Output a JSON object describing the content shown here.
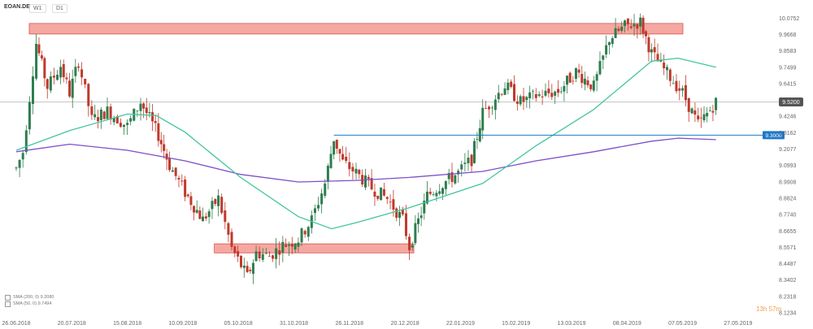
{
  "toolbar": {
    "symbol": "EOAN.DE",
    "timeframe": "W1",
    "interval": "D1"
  },
  "countdown": "13h 57m",
  "legend": {
    "sma200": "SMA (200, 0) 9.2080",
    "sma50": "SMA (50, 0) 9.7494"
  },
  "price_labels": {
    "last": "9.5200",
    "level": "9.3000"
  },
  "colors": {
    "up": "#2e7d4f",
    "down": "#c0392b",
    "sma50": "#43c59e",
    "sma200": "#7b4fc9",
    "zone_fill": "#f28b82",
    "zone_stroke": "#d9534f",
    "level_line": "#1f78c8",
    "last_price_bg": "#555555"
  },
  "chart_data": {
    "type": "candlestick",
    "symbol": "EOAN.DE",
    "y_ticks": [
      10.0752,
      9.9668,
      9.8583,
      9.7499,
      9.6415,
      9.52,
      9.4246,
      9.3162,
      9.2077,
      9.0993,
      8.9908,
      8.8824,
      8.774,
      8.6655,
      8.5571,
      8.4487,
      8.3402,
      8.2318,
      8.1234
    ],
    "ylim": [
      8.1234,
      10.12
    ],
    "x_tick_labels": [
      "26.06.2018",
      "20.07.2018",
      "15.08.2018",
      "10.09.2018",
      "05.10.2018",
      "31.10.2018",
      "26.11.2018",
      "20.12.2018",
      "22.01.2019",
      "15.02.2019",
      "13.03.2019",
      "08.04.2019",
      "07.05.2019",
      "27.05.2019"
    ],
    "last_price": 9.52,
    "horizontal_level": 9.3,
    "resistance_zone": {
      "from": "26.06.2018",
      "to": "15.04.2019",
      "low": 9.97,
      "high": 10.04
    },
    "support_zone": {
      "from": "10.09.2018",
      "to": "22.12.2018",
      "low": 8.52,
      "high": 8.58
    },
    "close_path_anchors": [
      [
        "26.06.2018",
        9.08
      ],
      [
        "29.06.2018",
        9.19
      ],
      [
        "05.07.2018",
        9.91
      ],
      [
        "10.07.2018",
        9.62
      ],
      [
        "16.07.2018",
        9.76
      ],
      [
        "20.07.2018",
        9.58
      ],
      [
        "24.07.2018",
        9.79
      ],
      [
        "30.07.2018",
        9.4
      ],
      [
        "06.08.2018",
        9.46
      ],
      [
        "15.08.2018",
        9.36
      ],
      [
        "21.08.2018",
        9.52
      ],
      [
        "29.08.2018",
        9.3
      ],
      [
        "03.09.2018",
        9.1
      ],
      [
        "10.09.2018",
        8.92
      ],
      [
        "18.09.2018",
        8.74
      ],
      [
        "25.09.2018",
        8.88
      ],
      [
        "01.10.2018",
        8.55
      ],
      [
        "08.10.2018",
        8.36
      ],
      [
        "12.10.2018",
        8.52
      ],
      [
        "18.10.2018",
        8.5
      ],
      [
        "24.10.2018",
        8.57
      ],
      [
        "31.10.2018",
        8.61
      ],
      [
        "06.11.2018",
        8.74
      ],
      [
        "12.11.2018",
        8.98
      ],
      [
        "16.11.2018",
        9.28
      ],
      [
        "20.11.2018",
        9.12
      ],
      [
        "26.11.2018",
        9.05
      ],
      [
        "03.12.2018",
        8.95
      ],
      [
        "10.12.2018",
        8.88
      ],
      [
        "17.12.2018",
        8.74
      ],
      [
        "20.12.2018",
        8.56
      ],
      [
        "28.12.2018",
        8.9
      ],
      [
        "04.01.2019",
        8.98
      ],
      [
        "11.01.2019",
        9.05
      ],
      [
        "17.01.2019",
        9.14
      ],
      [
        "22.01.2019",
        9.45
      ],
      [
        "01.02.2019",
        9.63
      ],
      [
        "08.02.2019",
        9.52
      ],
      [
        "15.02.2019",
        9.56
      ],
      [
        "25.02.2019",
        9.59
      ],
      [
        "05.03.2019",
        9.72
      ],
      [
        "13.03.2019",
        9.62
      ],
      [
        "20.03.2019",
        9.94
      ],
      [
        "27.03.2019",
        10.02
      ],
      [
        "03.04.2019",
        10.05
      ],
      [
        "08.04.2019",
        9.84
      ],
      [
        "15.04.2019",
        9.71
      ],
      [
        "22.04.2019",
        9.58
      ],
      [
        "29.04.2019",
        9.37
      ],
      [
        "03.05.2019",
        9.44
      ],
      [
        "07.05.2019",
        9.52
      ]
    ],
    "sma50_anchors": [
      [
        "26.06.2018",
        9.2
      ],
      [
        "20.07.2018",
        9.33
      ],
      [
        "15.08.2018",
        9.44
      ],
      [
        "28.08.2018",
        9.43
      ],
      [
        "10.09.2018",
        9.32
      ],
      [
        "05.10.2018",
        9.02
      ],
      [
        "31.10.2018",
        8.76
      ],
      [
        "15.11.2018",
        8.68
      ],
      [
        "26.11.2018",
        8.72
      ],
      [
        "20.12.2018",
        8.82
      ],
      [
        "22.01.2019",
        8.98
      ],
      [
        "15.02.2019",
        9.23
      ],
      [
        "13.03.2019",
        9.47
      ],
      [
        "08.04.2019",
        9.79
      ],
      [
        "20.04.2019",
        9.81
      ],
      [
        "07.05.2019",
        9.75
      ]
    ],
    "sma200_anchors": [
      [
        "26.06.2018",
        9.19
      ],
      [
        "20.07.2018",
        9.24
      ],
      [
        "15.08.2018",
        9.2
      ],
      [
        "10.09.2018",
        9.13
      ],
      [
        "05.10.2018",
        9.04
      ],
      [
        "31.10.2018",
        8.99
      ],
      [
        "26.11.2018",
        9.0
      ],
      [
        "20.12.2018",
        9.02
      ],
      [
        "22.01.2019",
        9.06
      ],
      [
        "15.02.2019",
        9.13
      ],
      [
        "13.03.2019",
        9.19
      ],
      [
        "08.04.2019",
        9.26
      ],
      [
        "20.04.2019",
        9.28
      ],
      [
        "07.05.2019",
        9.27
      ]
    ],
    "series": [
      {
        "name": "SMA (200, 0)",
        "last": 9.208
      },
      {
        "name": "SMA (50, 0)",
        "last": 9.7494
      }
    ],
    "grid": false
  }
}
